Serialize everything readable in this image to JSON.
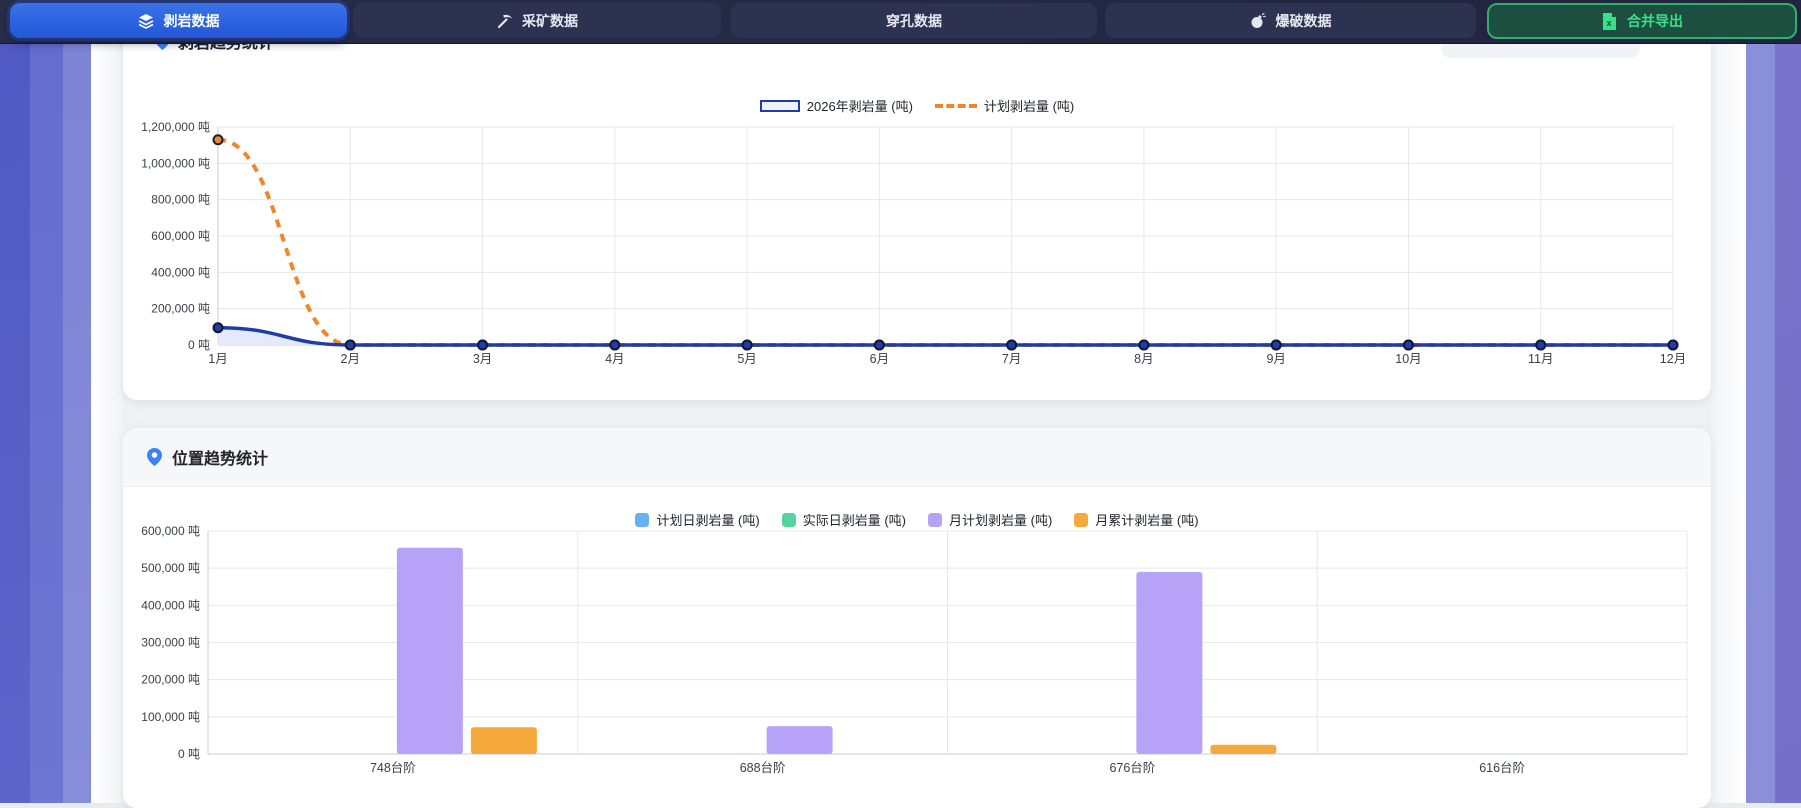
{
  "navbar": {
    "tabs": [
      {
        "label": "剥岩数据",
        "icon": "layers",
        "active": true
      },
      {
        "label": "采矿数据",
        "icon": "pickaxe",
        "active": false
      },
      {
        "label": "穿孔数据",
        "icon": null,
        "active": false
      },
      {
        "label": "爆破数据",
        "icon": "bomb",
        "active": false
      }
    ],
    "export_label": "合并导出",
    "export_icon": "excel-file"
  },
  "card1": {
    "title_partial": "剥岩趋势统计"
  },
  "card2": {
    "title": "位置趋势统计"
  },
  "colors": {
    "navbar_bg": "#232841",
    "active_tab_blue": "#2b63e3",
    "export_green_text": "#38e089",
    "export_green_border": "#2fae6e",
    "line_actual_navy": "#1f3da8",
    "line_planned_orange": "#f0862b",
    "area_fill": "#e2e8f7",
    "bar_planned_daily_blue": "#68b1f1",
    "bar_actual_daily_green": "#55d4a0",
    "bar_month_plan_purple": "#b6a3f8",
    "bar_month_cum_orange": "#f5a83c",
    "left_band_purple": "#6b72d0"
  },
  "chart_data": [
    {
      "type": "line",
      "title": "",
      "x": [
        "1月",
        "2月",
        "3月",
        "4月",
        "5月",
        "6月",
        "7月",
        "8月",
        "9月",
        "10月",
        "11月",
        "12月"
      ],
      "series": [
        {
          "name": "2026年剥岩量 (吨)",
          "color": "#1f3da8",
          "style": "solid",
          "area": true,
          "values": [
            95000,
            0,
            0,
            0,
            0,
            0,
            0,
            0,
            0,
            0,
            0,
            0
          ]
        },
        {
          "name": "计划剥岩量 (吨)",
          "color": "#f0862b",
          "style": "dashed",
          "area": false,
          "values": [
            1130000,
            0,
            0,
            0,
            0,
            0,
            0,
            0,
            0,
            0,
            0,
            0
          ]
        }
      ],
      "ylim": [
        0,
        1200000
      ],
      "ytick_step": 200000,
      "ytick_suffix": " 吨",
      "grid": true,
      "legend_position": "top-center"
    },
    {
      "type": "bar",
      "title": "位置趋势统计",
      "categories": [
        "748台阶",
        "688台阶",
        "676台阶",
        "616台阶"
      ],
      "series": [
        {
          "name": "计划日剥岩量 (吨)",
          "color": "#68b1f1",
          "values": [
            0,
            0,
            0,
            0
          ]
        },
        {
          "name": "实际日剥岩量 (吨)",
          "color": "#55d4a0",
          "values": [
            0,
            0,
            0,
            0
          ]
        },
        {
          "name": "月计划剥岩量 (吨)",
          "color": "#b6a3f8",
          "values": [
            555000,
            75000,
            490000,
            0
          ]
        },
        {
          "name": "月累计剥岩量 (吨)",
          "color": "#f5a83c",
          "values": [
            72000,
            0,
            25000,
            0
          ]
        }
      ],
      "ylim": [
        0,
        600000
      ],
      "ytick_step": 100000,
      "ytick_suffix": " 吨",
      "grid": true,
      "legend_position": "top-center"
    }
  ]
}
